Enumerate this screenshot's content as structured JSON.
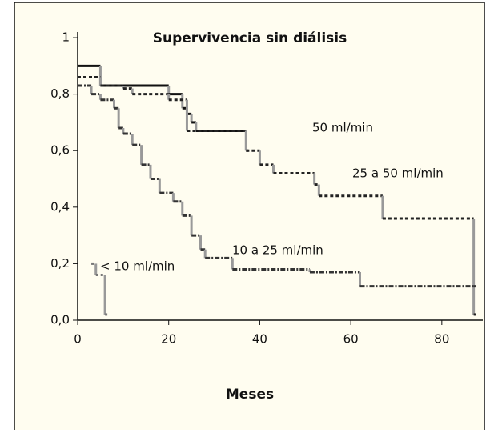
{
  "chart_data": {
    "type": "step",
    "title": "Supervivencia sin diálisis",
    "x_label": "Meses",
    "xlim": [
      0,
      89
    ],
    "ylim": [
      0,
      1.02
    ],
    "xticks": [
      0,
      20,
      40,
      60,
      80
    ],
    "yticks": [
      {
        "value": 0,
        "label": "0,0"
      },
      {
        "value": 0.2,
        "label": "0,2"
      },
      {
        "value": 0.4,
        "label": "0,4"
      },
      {
        "value": 0.6,
        "label": "0,6"
      },
      {
        "value": 0.8,
        "label": "0,8"
      },
      1
    ],
    "series": [
      {
        "name": "50 ml/min",
        "color": "#111111",
        "x": [
          0,
          5,
          17,
          20,
          23,
          24,
          25,
          26,
          30,
          37
        ],
        "values": [
          0.9,
          0.83,
          0.83,
          0.8,
          0.75,
          0.73,
          0.7,
          0.67,
          0.67,
          0.6
        ]
      },
      {
        "name": "25 a 50 ml/min",
        "color": "#222222",
        "x": [
          0,
          5,
          10,
          12,
          20,
          24,
          37,
          40,
          43,
          52,
          53,
          67,
          87
        ],
        "values": [
          0.86,
          0.83,
          0.82,
          0.8,
          0.78,
          0.67,
          0.6,
          0.55,
          0.52,
          0.48,
          0.44,
          0.36,
          0.02
        ]
      },
      {
        "name": "10 a 25 ml/min",
        "color": "#333333",
        "x": [
          0,
          3,
          5,
          8,
          9,
          10,
          12,
          14,
          16,
          18,
          21,
          23,
          25,
          27,
          28,
          34,
          51,
          62,
          87
        ],
        "values": [
          0.83,
          0.8,
          0.78,
          0.75,
          0.68,
          0.66,
          0.62,
          0.55,
          0.5,
          0.45,
          0.42,
          0.37,
          0.3,
          0.25,
          0.22,
          0.18,
          0.17,
          0.12,
          0.12
        ]
      },
      {
        "name": "< 10 ml/min",
        "color": "#777777",
        "x": [
          3,
          4,
          6
        ],
        "values": [
          0.2,
          0.16,
          0.02
        ]
      }
    ]
  }
}
